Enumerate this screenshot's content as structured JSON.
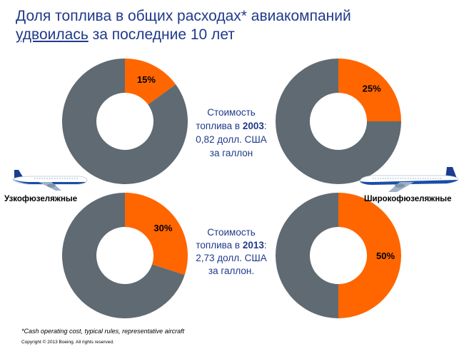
{
  "header": {
    "title_line1": "Доля топлива в общих расходах* авиакомпаний",
    "title_underlined": "удвоилась",
    "title_rest": "за последние 10 лет"
  },
  "captions": {
    "y2003": {
      "line1": "Стоимость",
      "line2_pre": "топлива в ",
      "year": "2003",
      "line2_post": ":",
      "line3": "0,82 долл. США",
      "line4": "за галлон"
    },
    "y2013": {
      "line1": "Стоимость",
      "line2_pre": "топлива в ",
      "year": "2013",
      "line2_post": ":",
      "line3": "2,73 долл. США",
      "line4": "за галлон."
    }
  },
  "labels": {
    "narrow": "Узкофюзеляжные",
    "wide": "Широкофюзеляжные"
  },
  "footer": {
    "footnote": "*Cash operating cost, typical rules, representative aircraft",
    "copyright": "Copyright © 2013 Boeing. All rights reserved."
  },
  "colors": {
    "fuel": "#ff6600",
    "other": "#5f6a72",
    "title": "#1f3a8a"
  },
  "chart_data": [
    {
      "type": "pie",
      "title": "",
      "group": "Узкофюзеляжные",
      "year": "2003",
      "slices": [
        {
          "label": "fuel",
          "value": 15,
          "text": "15%"
        },
        {
          "label": "other",
          "value": 85,
          "text": ""
        }
      ]
    },
    {
      "type": "pie",
      "title": "",
      "group": "Широкофюзеляжные",
      "year": "2003",
      "slices": [
        {
          "label": "fuel",
          "value": 25,
          "text": "25%"
        },
        {
          "label": "other",
          "value": 75,
          "text": ""
        }
      ]
    },
    {
      "type": "pie",
      "title": "",
      "group": "Узкофюзеляжные",
      "year": "2013",
      "slices": [
        {
          "label": "fuel",
          "value": 30,
          "text": "30%"
        },
        {
          "label": "other",
          "value": 70,
          "text": ""
        }
      ]
    },
    {
      "type": "pie",
      "title": "",
      "group": "Широкофюзеляжные",
      "year": "2013",
      "slices": [
        {
          "label": "fuel",
          "value": 50,
          "text": "50%"
        },
        {
          "label": "other",
          "value": 50,
          "text": ""
        }
      ]
    }
  ]
}
